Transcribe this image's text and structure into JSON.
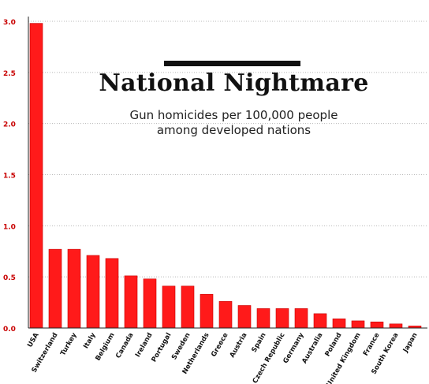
{
  "chart_data": {
    "type": "bar",
    "title": "National Nightmare",
    "subtitle": [
      "Gun homicides per 100,000 people",
      "among developed nations"
    ],
    "xlabel": "",
    "ylabel": "",
    "ylim": [
      0,
      3.0
    ],
    "yticks": [
      "0.0",
      "0.5",
      "1.0",
      "1.5",
      "2.0",
      "2.5",
      "3.0"
    ],
    "grid": true,
    "categories": [
      "USA",
      "Switzerland",
      "Turkey",
      "Italy",
      "Belgium",
      "Canada",
      "Ireland",
      "Portugal",
      "Sweden",
      "Netherlands",
      "Greece",
      "Austria",
      "Spain",
      "Czech Republic",
      "Germany",
      "Australia",
      "Poland",
      "United Kingdom",
      "France",
      "South Korea",
      "Japan"
    ],
    "values": [
      2.98,
      0.77,
      0.77,
      0.71,
      0.68,
      0.51,
      0.48,
      0.41,
      0.41,
      0.33,
      0.26,
      0.22,
      0.19,
      0.19,
      0.19,
      0.14,
      0.09,
      0.07,
      0.06,
      0.04,
      0.02
    ],
    "colors": {
      "bar": "#ff1a1a",
      "bar_edge": "#c80000",
      "tick_label": "#c80000",
      "grid": "#b8b8b8",
      "axis": "#222222",
      "category_label": "#111111"
    }
  }
}
